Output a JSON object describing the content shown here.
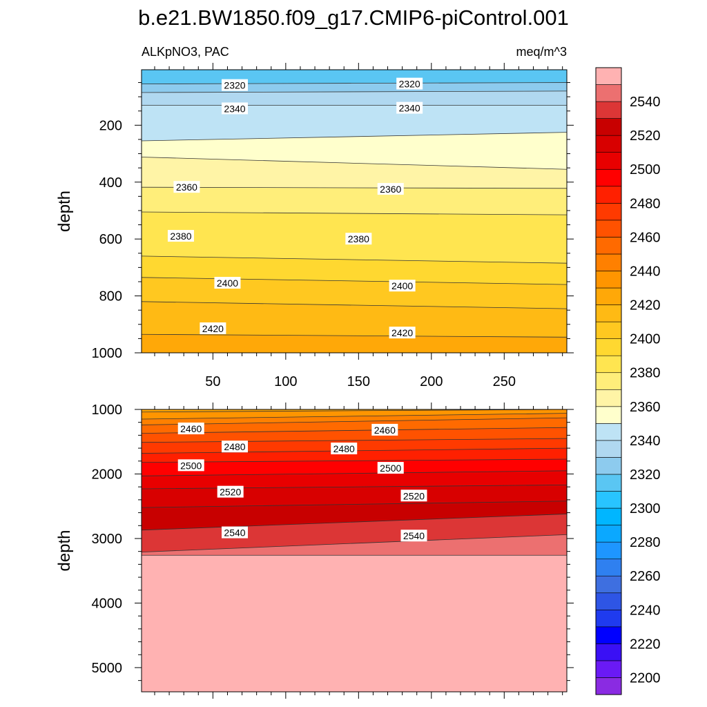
{
  "figure": {
    "title": "b.e21.BW1850.f09_g17.CMIP6-piControl.001",
    "left_label": "ALKpNO3, PAC",
    "right_label": "meq/m^3"
  },
  "chart_data": [
    {
      "type": "contour",
      "panel": "upper",
      "ylabel": "depth",
      "xlabel": "",
      "xlim": [
        1,
        293
      ],
      "ylim": [
        1000,
        5
      ],
      "x_ticks": [
        50,
        100,
        150,
        200,
        250
      ],
      "y_ticks": [
        200,
        400,
        600,
        800,
        1000
      ],
      "grid": false,
      "contour_levels": [
        2320,
        2330,
        2340,
        2350,
        2360,
        2370,
        2380,
        2390,
        2400,
        2410,
        2420
      ],
      "contour_depths_at_x": {
        "x": [
          1,
          293
        ],
        "2320": [
          55,
          50
        ],
        "2330": [
          85,
          80
        ],
        "2340": [
          130,
          130
        ],
        "2350": [
          255,
          225
        ],
        "2360": [
          312,
          355
        ],
        "2370": [
          418,
          422
        ],
        "2380": [
          505,
          515
        ],
        "2390": [
          660,
          685
        ],
        "2400": [
          735,
          760
        ],
        "2410": [
          820,
          845
        ],
        "2420": [
          935,
          945
        ]
      },
      "contour_labels": [
        {
          "text": "2320",
          "x": 65,
          "depth": 60
        },
        {
          "text": "2320",
          "x": 185,
          "depth": 55
        },
        {
          "text": "2340",
          "x": 65,
          "depth": 142
        },
        {
          "text": "2340",
          "x": 185,
          "depth": 140
        },
        {
          "text": "2360",
          "x": 32,
          "depth": 418
        },
        {
          "text": "2360",
          "x": 172,
          "depth": 425
        },
        {
          "text": "2380",
          "x": 28,
          "depth": 590
        },
        {
          "text": "2380",
          "x": 150,
          "depth": 600
        },
        {
          "text": "2400",
          "x": 60,
          "depth": 755
        },
        {
          "text": "2400",
          "x": 180,
          "depth": 765
        },
        {
          "text": "2420",
          "x": 50,
          "depth": 915
        },
        {
          "text": "2420",
          "x": 180,
          "depth": 930
        }
      ]
    },
    {
      "type": "contour",
      "panel": "lower",
      "ylabel": "depth",
      "xlabel": "",
      "xlim": [
        1,
        293
      ],
      "ylim": [
        5375,
        1000
      ],
      "x_ticks": [
        50,
        100,
        150,
        200,
        250
      ],
      "y_ticks": [
        1000,
        2000,
        3000,
        4000,
        5000
      ],
      "grid": false,
      "contour_levels": [
        2430,
        2440,
        2450,
        2460,
        2470,
        2480,
        2490,
        2500,
        2510,
        2520,
        2530,
        2540,
        2550
      ],
      "contour_depths_at_x": {
        "x": [
          1,
          293
        ],
        "2430": [
          1040,
          1000
        ],
        "2440": [
          1150,
          1060
        ],
        "2450": [
          1240,
          1130
        ],
        "2460": [
          1370,
          1280
        ],
        "2470": [
          1510,
          1450
        ],
        "2480": [
          1680,
          1600
        ],
        "2490": [
          1820,
          1770
        ],
        "2500": [
          2030,
          1950
        ],
        "2510": [
          2230,
          2170
        ],
        "2520": [
          2520,
          2420
        ],
        "2530": [
          2870,
          2620
        ],
        "2540": [
          3210,
          2940
        ],
        "2550": [
          3260,
          3260
        ]
      },
      "contour_labels": [
        {
          "text": "2460",
          "x": 35,
          "depth": 1300
        },
        {
          "text": "2460",
          "x": 168,
          "depth": 1320
        },
        {
          "text": "2480",
          "x": 65,
          "depth": 1580
        },
        {
          "text": "2480",
          "x": 140,
          "depth": 1610
        },
        {
          "text": "2500",
          "x": 35,
          "depth": 1870
        },
        {
          "text": "2500",
          "x": 172,
          "depth": 1910
        },
        {
          "text": "2520",
          "x": 62,
          "depth": 2280
        },
        {
          "text": "2520",
          "x": 188,
          "depth": 2340
        },
        {
          "text": "2540",
          "x": 65,
          "depth": 2910
        },
        {
          "text": "2540",
          "x": 188,
          "depth": 2960
        }
      ]
    }
  ],
  "colorbar": {
    "labels": [
      "2200",
      "2220",
      "2240",
      "2260",
      "2280",
      "2300",
      "2320",
      "2340",
      "2360",
      "2380",
      "2400",
      "2420",
      "2440",
      "2460",
      "2480",
      "2500",
      "2520",
      "2540"
    ],
    "label_values": [
      2200,
      2220,
      2240,
      2260,
      2280,
      2300,
      2320,
      2340,
      2360,
      2380,
      2400,
      2420,
      2440,
      2460,
      2480,
      2500,
      2520,
      2540
    ],
    "colors": [
      "#8A2BE2",
      "#6A1AF5",
      "#3A10F5",
      "#0000FF",
      "#1F3BEF",
      "#2E55E5",
      "#3E6FE0",
      "#2F80F0",
      "#1E96FF",
      "#0BA8FF",
      "#00B6FF",
      "#28C4FF",
      "#5AC6F3",
      "#8DCBEE",
      "#B0D8F0",
      "#BEE3F5",
      "#FFFFCC",
      "#FFF4A6",
      "#FFEE7A",
      "#FFE550",
      "#FFD830",
      "#FFC820",
      "#FFBA14",
      "#FFA808",
      "#FF9500",
      "#FF8000",
      "#FF6A00",
      "#FF5200",
      "#FF3A00",
      "#FF2000",
      "#FF0000",
      "#E80000",
      "#D80000",
      "#C80000",
      "#DC3636",
      "#EC7070",
      "#FFB2B2"
    ]
  }
}
